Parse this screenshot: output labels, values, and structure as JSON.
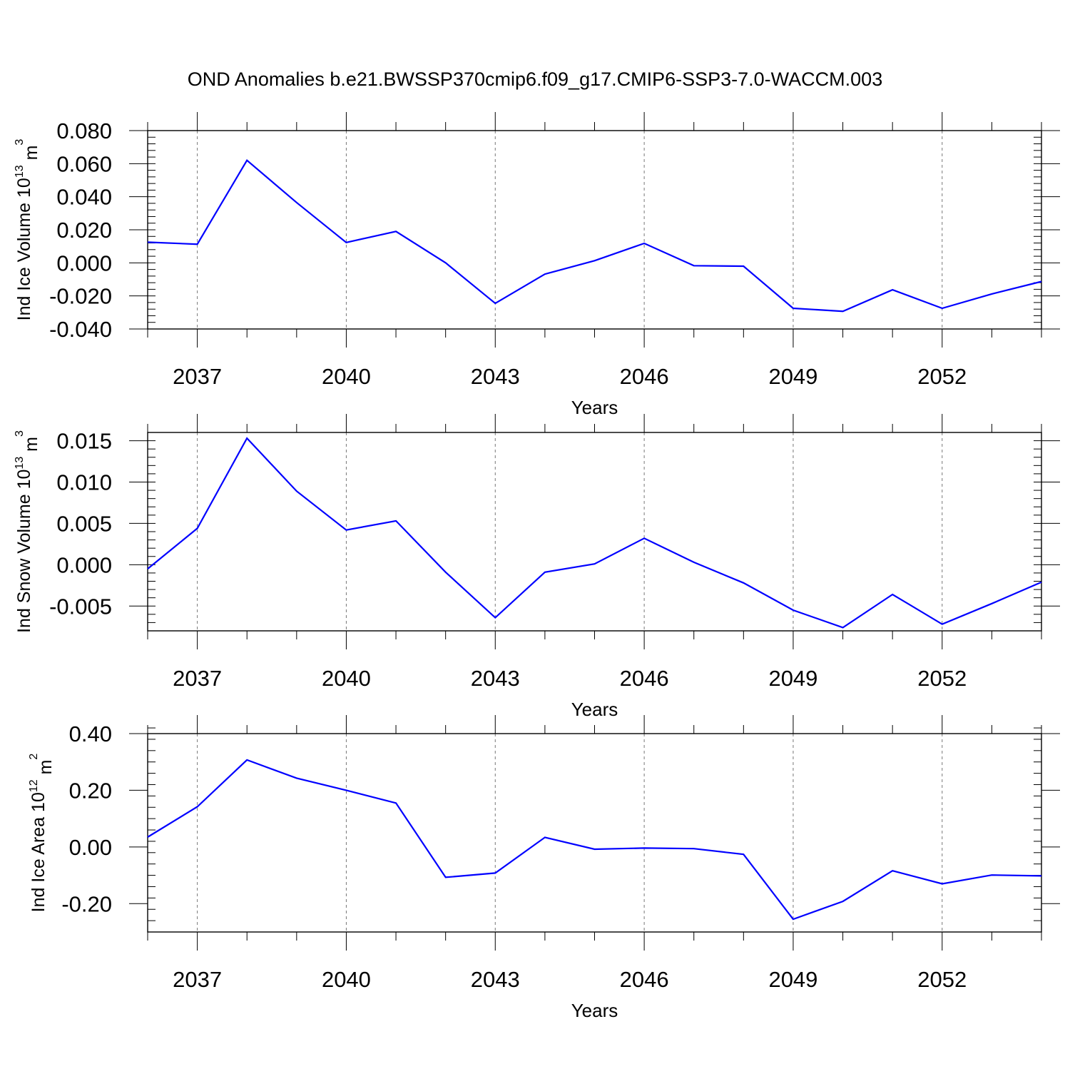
{
  "title": "OND Anomalies b.e21.BWSSP370cmip6.f09_g17.CMIP6-SSP3-7.0-WACCM.003",
  "line_color": "#0000ff",
  "chart_data": [
    {
      "type": "line",
      "title": "OND Anomalies b.e21.BWSSP370cmip6.f09_g17.CMIP6-SSP3-7.0-WACCM.003",
      "xlabel": "Years",
      "ylabel": {
        "base": "Ind Ice Volume 10",
        "exp": "13",
        "unit": " m",
        "unit_exp": "3"
      },
      "ylim": [
        -0.04,
        0.08
      ],
      "yticks": [
        0.08,
        0.06,
        0.04,
        0.02,
        0.0,
        -0.02,
        -0.04
      ],
      "ytick_labels": [
        "0.080",
        "0.060",
        "0.040",
        "0.020",
        "0.000",
        "-0.020",
        "-0.040"
      ],
      "xlim": [
        2036,
        2054
      ],
      "xticks": [
        2037,
        2040,
        2043,
        2046,
        2049,
        2052
      ],
      "xtick_labels": [
        "2037",
        "2040",
        "2043",
        "2046",
        "2049",
        "2052"
      ],
      "x": [
        2036,
        2037,
        2038,
        2039,
        2040,
        2041,
        2042,
        2043,
        2044,
        2045,
        2046,
        2047,
        2048,
        2049,
        2050,
        2051,
        2052,
        2053,
        2054
      ],
      "values": [
        0.0125,
        0.0113,
        0.062,
        0.0365,
        0.0123,
        0.019,
        0.0,
        -0.0245,
        -0.0068,
        0.0013,
        0.0118,
        -0.0017,
        -0.002,
        -0.0275,
        -0.0293,
        -0.0163,
        -0.0275,
        -0.0188,
        -0.0113
      ]
    },
    {
      "type": "line",
      "xlabel": "Years",
      "ylabel": {
        "base": "Ind Snow Volume 10",
        "exp": "13",
        "unit": " m",
        "unit_exp": "3"
      },
      "ylim": [
        -0.008,
        0.016
      ],
      "yticks": [
        0.015,
        0.01,
        0.005,
        0.0,
        -0.005
      ],
      "ytick_labels": [
        "0.015",
        "0.010",
        "0.005",
        "0.000",
        "-0.005"
      ],
      "xlim": [
        2036,
        2054
      ],
      "xticks": [
        2037,
        2040,
        2043,
        2046,
        2049,
        2052
      ],
      "xtick_labels": [
        "2037",
        "2040",
        "2043",
        "2046",
        "2049",
        "2052"
      ],
      "x": [
        2036,
        2037,
        2038,
        2039,
        2040,
        2041,
        2042,
        2043,
        2044,
        2045,
        2046,
        2047,
        2048,
        2049,
        2050,
        2051,
        2052,
        2053,
        2054
      ],
      "values": [
        -0.0005,
        0.0044,
        0.0153,
        0.0089,
        0.0042,
        0.0053,
        -0.0009,
        -0.0064,
        -0.0009,
        0.0001,
        0.0032,
        0.0003,
        -0.0022,
        -0.0055,
        -0.0076,
        -0.0036,
        -0.0072,
        -0.0047,
        -0.0021
      ]
    },
    {
      "type": "line",
      "xlabel": "Years",
      "ylabel": {
        "base": "Ind Ice Area 10",
        "exp": "12",
        "unit": " m",
        "unit_exp": "2"
      },
      "ylim": [
        -0.3,
        0.4
      ],
      "yticks": [
        0.4,
        0.2,
        0.0,
        -0.2
      ],
      "ytick_labels": [
        "0.40",
        "0.20",
        "0.00",
        "-0.20"
      ],
      "xlim": [
        2036,
        2054
      ],
      "xticks": [
        2037,
        2040,
        2043,
        2046,
        2049,
        2052
      ],
      "xtick_labels": [
        "2037",
        "2040",
        "2043",
        "2046",
        "2049",
        "2052"
      ],
      "x": [
        2036,
        2037,
        2038,
        2039,
        2040,
        2041,
        2042,
        2043,
        2044,
        2045,
        2046,
        2047,
        2048,
        2049,
        2050,
        2051,
        2052,
        2053,
        2054
      ],
      "values": [
        0.035,
        0.142,
        0.307,
        0.243,
        0.2,
        0.155,
        -0.107,
        -0.092,
        0.034,
        -0.008,
        -0.004,
        -0.006,
        -0.026,
        -0.255,
        -0.192,
        -0.084,
        -0.13,
        -0.099,
        -0.102
      ]
    }
  ]
}
